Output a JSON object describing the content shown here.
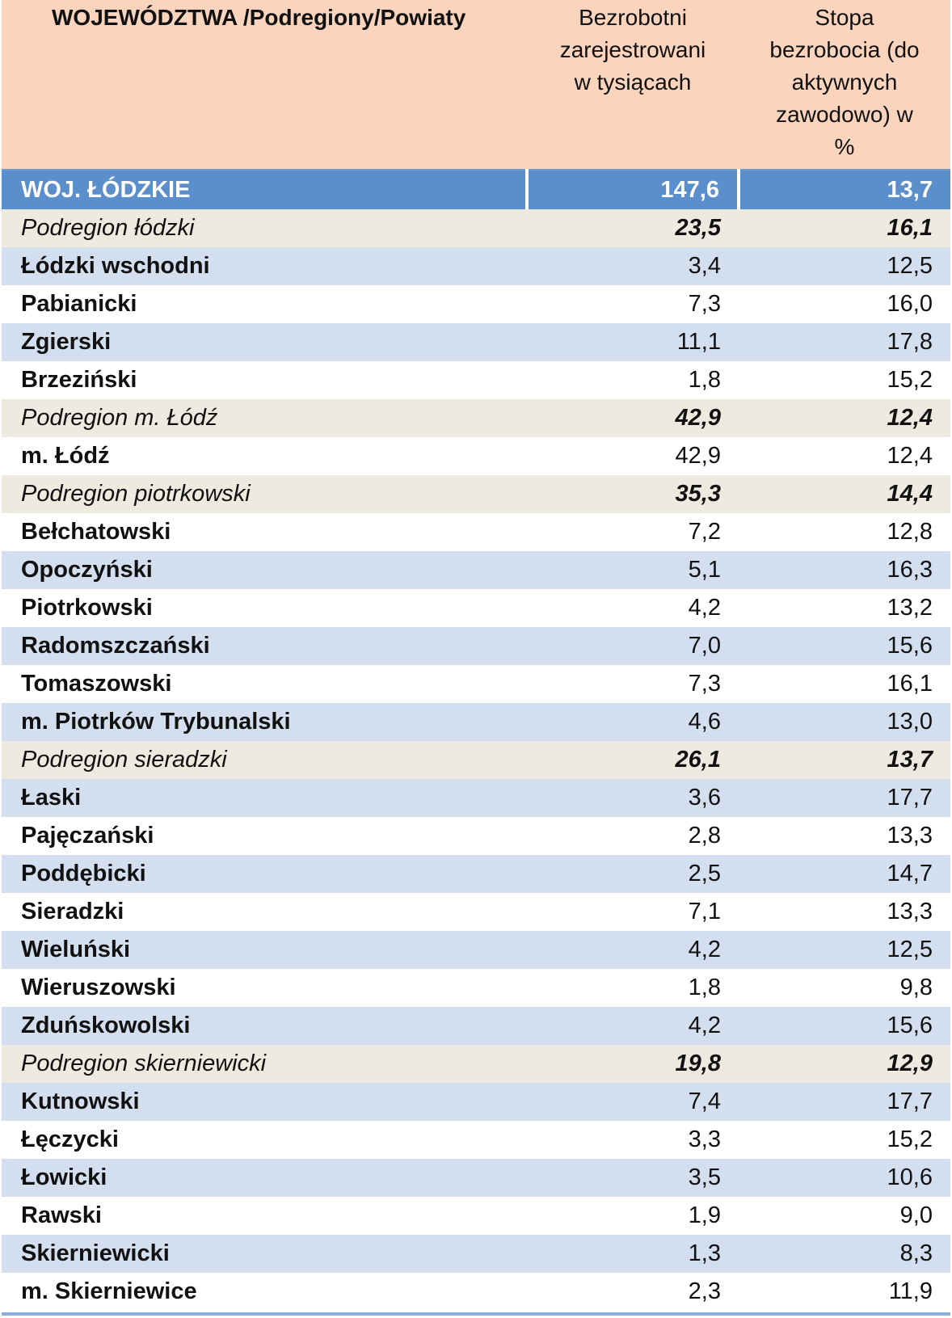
{
  "table": {
    "headers": {
      "name": "WOJEWÓDZTWA /Podregiony/Powiaty",
      "unemployed": [
        "Bezrobotni",
        "zarejestrowani",
        "w tysiącach"
      ],
      "rate": [
        "Stopa",
        "bezrobocia  (do",
        "aktywnych",
        "zawodowo) w",
        "%"
      ]
    },
    "rows": [
      {
        "kind": "total",
        "name": "WOJ. ŁÓDZKIE",
        "unemployed": "147,6",
        "rate": "13,7"
      },
      {
        "kind": "sub",
        "name": "Podregion łódzki",
        "unemployed": "23,5",
        "rate": "16,1"
      },
      {
        "kind": "stripe",
        "name": "Łódzki wschodni",
        "unemployed": "3,4",
        "rate": "12,5"
      },
      {
        "kind": "plain",
        "name": "Pabianicki",
        "unemployed": "7,3",
        "rate": "16,0"
      },
      {
        "kind": "stripe",
        "name": "Zgierski",
        "unemployed": "11,1",
        "rate": "17,8"
      },
      {
        "kind": "plain",
        "name": "Brzeziński",
        "unemployed": "1,8",
        "rate": "15,2"
      },
      {
        "kind": "sub",
        "name": "Podregion m. Łódź",
        "unemployed": "42,9",
        "rate": "12,4"
      },
      {
        "kind": "plain",
        "name": "m. Łódź",
        "unemployed": "42,9",
        "rate": "12,4"
      },
      {
        "kind": "sub",
        "name": "Podregion piotrkowski",
        "unemployed": "35,3",
        "rate": "14,4"
      },
      {
        "kind": "plain",
        "name": "Bełchatowski",
        "unemployed": "7,2",
        "rate": "12,8"
      },
      {
        "kind": "stripe",
        "name": "Opoczyński",
        "unemployed": "5,1",
        "rate": "16,3"
      },
      {
        "kind": "plain",
        "name": "Piotrkowski",
        "unemployed": "4,2",
        "rate": "13,2"
      },
      {
        "kind": "stripe",
        "name": "Radomszczański",
        "unemployed": "7,0",
        "rate": "15,6"
      },
      {
        "kind": "plain",
        "name": "Tomaszowski",
        "unemployed": "7,3",
        "rate": "16,1"
      },
      {
        "kind": "stripe",
        "name": "m. Piotrków Trybunalski",
        "unemployed": "4,6",
        "rate": "13,0"
      },
      {
        "kind": "sub",
        "name": "Podregion sieradzki",
        "unemployed": "26,1",
        "rate": "13,7"
      },
      {
        "kind": "stripe",
        "name": "Łaski",
        "unemployed": "3,6",
        "rate": "17,7"
      },
      {
        "kind": "plain",
        "name": "Pajęczański",
        "unemployed": "2,8",
        "rate": "13,3"
      },
      {
        "kind": "stripe",
        "name": "Poddębicki",
        "unemployed": "2,5",
        "rate": "14,7"
      },
      {
        "kind": "plain",
        "name": "Sieradzki",
        "unemployed": "7,1",
        "rate": "13,3"
      },
      {
        "kind": "stripe",
        "name": "Wieluński",
        "unemployed": "4,2",
        "rate": "12,5"
      },
      {
        "kind": "plain",
        "name": "Wieruszowski",
        "unemployed": "1,8",
        "rate": "9,8"
      },
      {
        "kind": "stripe",
        "name": "Zduńskowolski",
        "unemployed": "4,2",
        "rate": "15,6"
      },
      {
        "kind": "sub",
        "name": "Podregion skierniewicki",
        "unemployed": "19,8",
        "rate": "12,9"
      },
      {
        "kind": "stripe",
        "name": "Kutnowski",
        "unemployed": "7,4",
        "rate": "17,7"
      },
      {
        "kind": "plain",
        "name": "Łęczycki",
        "unemployed": "3,3",
        "rate": "15,2"
      },
      {
        "kind": "stripe",
        "name": "Łowicki",
        "unemployed": "3,5",
        "rate": "10,6"
      },
      {
        "kind": "plain",
        "name": "Rawski",
        "unemployed": "1,9",
        "rate": "9,0"
      },
      {
        "kind": "stripe",
        "name": "Skierniewicki",
        "unemployed": "1,3",
        "rate": "8,3"
      },
      {
        "kind": "plain",
        "name": "m. Skierniewice",
        "unemployed": "2,3",
        "rate": "11,9"
      }
    ]
  }
}
